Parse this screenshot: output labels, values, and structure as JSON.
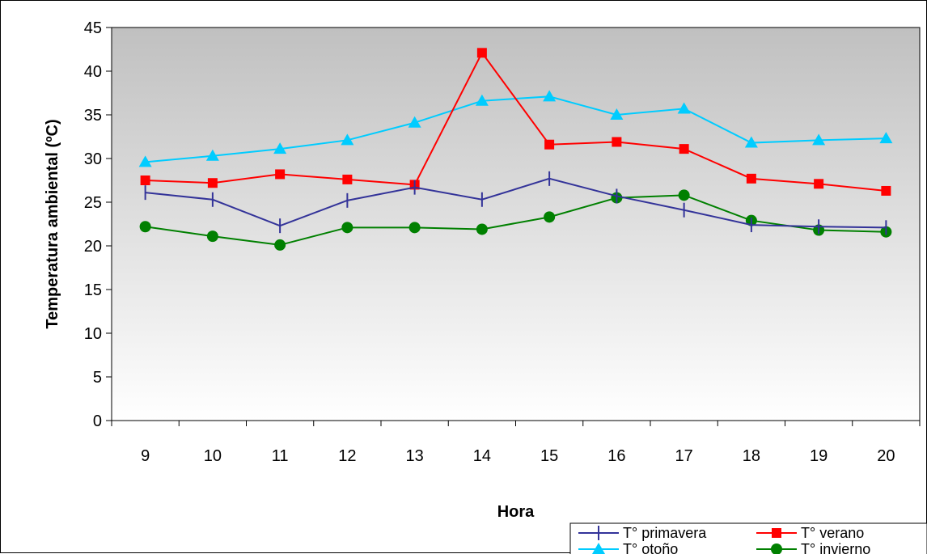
{
  "chart_data": {
    "type": "line",
    "xlabel": "Hora",
    "ylabel": "Temperatura ambiental (ºC)",
    "categories": [
      "9",
      "10",
      "11",
      "12",
      "13",
      "14",
      "15",
      "16",
      "17",
      "18",
      "19",
      "20"
    ],
    "ylim": [
      0,
      45
    ],
    "yticks": [
      0,
      5,
      10,
      15,
      20,
      25,
      30,
      35,
      40,
      45
    ],
    "grid": false,
    "legend_position": "bottom-right",
    "series": [
      {
        "name": "T° primavera",
        "color": "#333399",
        "marker": "plus",
        "values": [
          26.1,
          25.3,
          22.3,
          25.2,
          26.7,
          25.3,
          27.7,
          25.7,
          24.1,
          22.4,
          22.2,
          22.1
        ]
      },
      {
        "name": "T° verano",
        "color": "#ff0000",
        "marker": "square",
        "values": [
          27.5,
          27.2,
          28.2,
          27.6,
          27.0,
          42.1,
          31.6,
          31.9,
          31.1,
          27.7,
          27.1,
          26.3
        ]
      },
      {
        "name": "T° otoño",
        "color": "#00ccff",
        "marker": "triangle",
        "values": [
          29.6,
          30.3,
          31.1,
          32.1,
          34.1,
          36.6,
          37.1,
          35.0,
          35.7,
          31.8,
          32.1,
          32.3
        ]
      },
      {
        "name": "T° invierno",
        "color": "#008000",
        "marker": "circle",
        "values": [
          22.2,
          21.1,
          20.1,
          22.1,
          22.1,
          21.9,
          23.3,
          25.5,
          25.8,
          22.9,
          21.8,
          21.6
        ]
      }
    ],
    "plot_background": {
      "top": "#c0c0c0",
      "bottom": "#ffffff"
    }
  }
}
